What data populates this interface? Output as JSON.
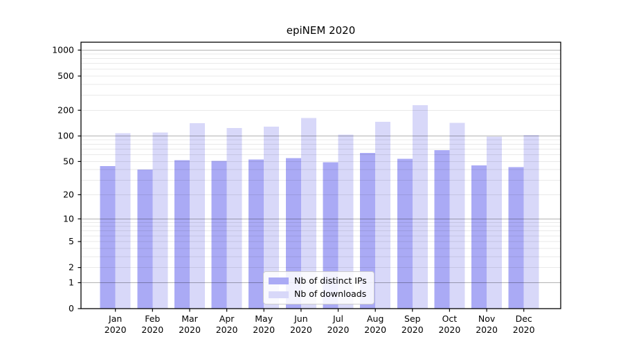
{
  "title": "epiNEM 2020",
  "chart_data": {
    "type": "bar",
    "title": "epiNEM 2020",
    "categories": [
      "Jan",
      "Feb",
      "Mar",
      "Apr",
      "May",
      "Jun",
      "Jul",
      "Aug",
      "Sep",
      "Oct",
      "Nov",
      "Dec"
    ],
    "year_label": "2020",
    "series": [
      {
        "name": "Nb of distinct IPs",
        "color": "#aaaaf5",
        "values": [
          44,
          40,
          52,
          51,
          53,
          55,
          49,
          63,
          54,
          68,
          45,
          43
        ]
      },
      {
        "name": "Nb of downloads",
        "color": "#d8d8f9",
        "values": [
          108,
          110,
          141,
          124,
          129,
          162,
          104,
          147,
          228,
          142,
          98,
          103
        ]
      }
    ],
    "y_scale": "log1p",
    "y_ticks": [
      0,
      1,
      2,
      5,
      10,
      20,
      50,
      100,
      200,
      500,
      1000
    ],
    "y_major_gridlines": [
      1,
      10,
      100,
      1000
    ],
    "ylim": [
      0,
      1236
    ],
    "grid": true,
    "legend_position": "lower center"
  }
}
